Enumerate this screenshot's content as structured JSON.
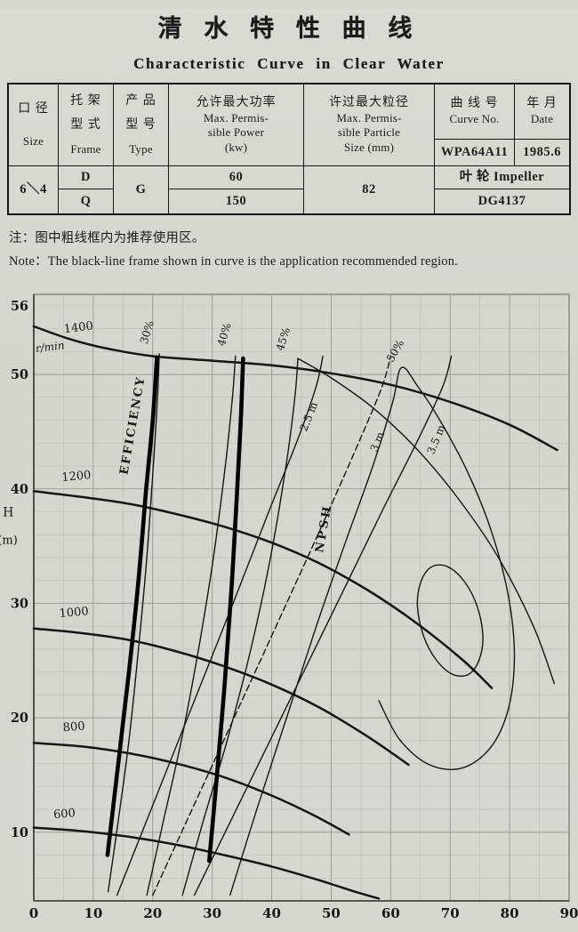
{
  "page": {
    "title_cn": "清  水  特  性  曲  线",
    "title_en": "Characteristic  Curve  in  Clear  Water",
    "note_cn": "注：图中粗线框内为推荐使用区。",
    "note_en": "Note：The black-line frame shown in curve is the application recommended region."
  },
  "table": {
    "headers": {
      "size_cn": "口  径",
      "size_en": "Size",
      "frame_cn1": "托  架",
      "frame_cn2": "型  式",
      "frame_en": "Frame",
      "type_cn1": "产  品",
      "type_cn2": "型  号",
      "type_en": "Type",
      "power_cn": "允许最大功率",
      "power_en1": "Max. Permis-",
      "power_en2": "sible Power",
      "power_en3": "(kw)",
      "particle_cn": "许过最大粒径",
      "particle_en1": "Max. Permis-",
      "particle_en2": "sible Particle",
      "particle_en3": "Size (mm)",
      "curve_cn": "曲 线 号",
      "curve_en": "Curve No.",
      "date_cn": "年  月",
      "date_en": "Date"
    },
    "values": {
      "size": "6＼4",
      "frame_row1": "D",
      "frame_row2": "Q",
      "type": "G",
      "power_row1": "60",
      "power_row2": "150",
      "particle": "82",
      "curve_no": "WPA64A11",
      "date": "1985.6",
      "impeller": "叶 轮  Impeller",
      "impeller_no": "DG4137"
    }
  },
  "chart_data": {
    "type": "line",
    "title": "Characteristic Curve in Clear Water",
    "xlabel": "",
    "ylabel": "H (m)",
    "xlim": [
      0,
      90
    ],
    "ylim": [
      4,
      57
    ],
    "x_ticks": [
      0,
      10,
      20,
      30,
      40,
      50,
      60,
      70,
      80,
      90
    ],
    "y_ticks": [
      10,
      20,
      30,
      40,
      50,
      56
    ],
    "grid": {
      "x_minor": 5,
      "x_major": 10,
      "y_minor": 2,
      "y_major": 10
    },
    "colors": {
      "curve": "#151515",
      "grid_minor": "#c0c0b8",
      "grid_major": "#9e9e96",
      "frame": "#000000",
      "border": "#77776f"
    },
    "series": [
      {
        "name": "hq-1400",
        "label": "1400 r/min head curve",
        "w": 2.5,
        "points": [
          [
            0,
            54.2
          ],
          [
            6,
            53.1
          ],
          [
            12,
            52.3
          ],
          [
            20,
            51.6
          ],
          [
            30,
            51.2
          ],
          [
            40,
            50.8
          ],
          [
            50,
            50.1
          ],
          [
            60,
            49.1
          ],
          [
            70,
            47.6
          ],
          [
            80,
            45.6
          ],
          [
            88,
            43.4
          ]
        ]
      },
      {
        "name": "hq-1200",
        "label": "1200 r/min head curve",
        "w": 2.5,
        "points": [
          [
            0,
            39.8
          ],
          [
            8,
            39.3
          ],
          [
            16,
            38.7
          ],
          [
            24,
            37.8
          ],
          [
            32,
            36.7
          ],
          [
            40,
            35.3
          ],
          [
            48,
            33.5
          ],
          [
            56,
            31.2
          ],
          [
            64,
            28.4
          ],
          [
            72,
            25.1
          ],
          [
            77,
            22.6
          ]
        ]
      },
      {
        "name": "hq-1000",
        "label": "1000 r/min head curve",
        "w": 2.5,
        "points": [
          [
            0,
            27.8
          ],
          [
            8,
            27.4
          ],
          [
            16,
            26.8
          ],
          [
            24,
            25.8
          ],
          [
            32,
            24.5
          ],
          [
            40,
            22.9
          ],
          [
            48,
            20.9
          ],
          [
            56,
            18.4
          ],
          [
            63,
            15.9
          ]
        ]
      },
      {
        "name": "hq-800",
        "label": "800 r/min head curve",
        "w": 2.5,
        "points": [
          [
            0,
            17.8
          ],
          [
            8,
            17.5
          ],
          [
            16,
            16.9
          ],
          [
            24,
            16.0
          ],
          [
            32,
            14.8
          ],
          [
            40,
            13.2
          ],
          [
            47,
            11.5
          ],
          [
            53,
            9.8
          ]
        ]
      },
      {
        "name": "hq-600",
        "label": "600 r/min head curve",
        "w": 2.5,
        "points": [
          [
            0,
            10.4
          ],
          [
            8,
            10.1
          ],
          [
            16,
            9.6
          ],
          [
            24,
            8.9
          ],
          [
            32,
            8.0
          ],
          [
            40,
            7.0
          ],
          [
            48,
            5.8
          ],
          [
            54,
            4.8
          ],
          [
            58,
            4.2
          ]
        ]
      },
      {
        "name": "eff-30",
        "label": "30% efficiency line",
        "w": 1.4,
        "points": [
          [
            12.5,
            4.8
          ],
          [
            14.2,
            11
          ],
          [
            16,
            18
          ],
          [
            17.6,
            26
          ],
          [
            19,
            34
          ],
          [
            20.1,
            42
          ],
          [
            20.8,
            48
          ],
          [
            21.1,
            51.8
          ]
        ]
      },
      {
        "name": "eff-40",
        "label": "40% efficiency line",
        "w": 1.4,
        "points": [
          [
            19,
            4.5
          ],
          [
            21.8,
            11
          ],
          [
            24.8,
            18
          ],
          [
            27.7,
            26
          ],
          [
            30.2,
            34
          ],
          [
            32.2,
            42
          ],
          [
            33.4,
            48
          ],
          [
            33.9,
            51.6
          ]
        ]
      },
      {
        "name": "eff-45",
        "label": "45% efficiency line",
        "w": 1.4,
        "points": [
          [
            25,
            4.5
          ],
          [
            28.5,
            11
          ],
          [
            32.5,
            18
          ],
          [
            36.5,
            26
          ],
          [
            39.8,
            34
          ],
          [
            42.4,
            42
          ],
          [
            43.9,
            48
          ],
          [
            44.4,
            51.4
          ]
        ]
      },
      {
        "name": "eff-45-right",
        "label": "45% efficiency right branch",
        "w": 1.4,
        "points": [
          [
            44.4,
            51.4
          ],
          [
            50,
            49.7
          ],
          [
            57,
            47.1
          ],
          [
            64,
            43.7
          ],
          [
            71,
            39.4
          ],
          [
            78,
            34.1
          ],
          [
            84,
            28.0
          ],
          [
            87.5,
            23.0
          ]
        ]
      },
      {
        "name": "eff-50",
        "label": "50% efficiency contour",
        "w": 1.4,
        "points": [
          [
            33,
            4.5
          ],
          [
            37.5,
            12
          ],
          [
            42.5,
            20
          ],
          [
            47.5,
            28
          ],
          [
            52.5,
            35.5
          ],
          [
            57,
            42
          ],
          [
            60.3,
            47.5
          ],
          [
            61.8,
            50.6
          ],
          [
            64.5,
            49.0
          ],
          [
            68.5,
            45.8
          ],
          [
            73,
            41.4
          ],
          [
            77,
            36.2
          ],
          [
            79.8,
            30.6
          ],
          [
            80.8,
            25.4
          ],
          [
            79.8,
            20.8
          ],
          [
            76.8,
            17.4
          ],
          [
            72,
            15.6
          ],
          [
            66.5,
            15.9
          ],
          [
            61.5,
            18.1
          ],
          [
            58,
            21.5
          ]
        ]
      },
      {
        "name": "eff-max-island",
        "label": "best efficiency island",
        "w": 1.4,
        "closed": true,
        "points": [
          [
            74.9,
            25.1
          ],
          [
            75.5,
            27.2
          ],
          [
            74.5,
            29.8
          ],
          [
            72.4,
            31.9
          ],
          [
            69.6,
            33.2
          ],
          [
            66.9,
            33.2
          ],
          [
            65.1,
            31.9
          ],
          [
            64.5,
            29.8
          ],
          [
            65.5,
            27.2
          ],
          [
            67.6,
            25.1
          ],
          [
            70.4,
            23.8
          ],
          [
            73.1,
            23.8
          ]
        ]
      },
      {
        "name": "npsh-2-5",
        "label": "NPSH 2.5 m line",
        "w": 1.4,
        "points": [
          [
            14,
            4.5
          ],
          [
            20.5,
            13
          ],
          [
            27,
            21.5
          ],
          [
            33.5,
            30
          ],
          [
            39.5,
            38
          ],
          [
            44.5,
            44.5
          ],
          [
            47.5,
            49
          ],
          [
            48.6,
            51.6
          ]
        ]
      },
      {
        "name": "npsh-3",
        "label": "NPSH 3 m line",
        "w": 1.4,
        "dash": "7 4",
        "points": [
          [
            20,
            4.5
          ],
          [
            27.5,
            13
          ],
          [
            35,
            21.5
          ],
          [
            42.5,
            30
          ],
          [
            49.5,
            38
          ],
          [
            55,
            44.5
          ],
          [
            58.6,
            49
          ],
          [
            60,
            51.6
          ]
        ]
      },
      {
        "name": "npsh-3-5",
        "label": "NPSH 3.5 m line",
        "w": 1.4,
        "points": [
          [
            27,
            4.5
          ],
          [
            35,
            13
          ],
          [
            43,
            21.5
          ],
          [
            51,
            30
          ],
          [
            58.5,
            38
          ],
          [
            64.8,
            44.5
          ],
          [
            68.8,
            49
          ],
          [
            70.2,
            51.6
          ]
        ]
      },
      {
        "name": "frame-left",
        "label": "recommended region left bound",
        "w": 4.6,
        "color": "#000000",
        "points": [
          [
            12.4,
            8
          ],
          [
            14.2,
            16
          ],
          [
            16,
            24
          ],
          [
            17.6,
            32
          ],
          [
            18.9,
            40
          ],
          [
            20,
            46
          ],
          [
            20.7,
            51.5
          ]
        ]
      },
      {
        "name": "frame-right",
        "label": "recommended region right bound",
        "w": 4.6,
        "color": "#000000",
        "points": [
          [
            29.5,
            7.5
          ],
          [
            30.8,
            15
          ],
          [
            32.1,
            23
          ],
          [
            33.2,
            31
          ],
          [
            34.1,
            39
          ],
          [
            34.8,
            46
          ],
          [
            35.2,
            51.4
          ]
        ]
      }
    ],
    "labels": [
      {
        "name": "speed-1400",
        "text": "1400",
        "x": 7.6,
        "y": 53.8,
        "rot": -7,
        "size": 13
      },
      {
        "name": "rpm-unit",
        "text": "r/min",
        "x": 2.8,
        "y": 52.1,
        "rot": -7,
        "size": 12,
        "italic": true
      },
      {
        "name": "speed-1200",
        "text": "1200",
        "x": 7.2,
        "y": 40.8,
        "rot": -5,
        "size": 13
      },
      {
        "name": "speed-1000",
        "text": "1000",
        "x": 6.8,
        "y": 28.9,
        "rot": -5,
        "size": 13
      },
      {
        "name": "speed-800",
        "text": "800",
        "x": 6.8,
        "y": 18.9,
        "rot": -5,
        "size": 13
      },
      {
        "name": "speed-600",
        "text": "600",
        "x": 5.2,
        "y": 11.3,
        "rot": -5,
        "size": 13
      },
      {
        "name": "eff-30-label",
        "text": "30%",
        "x": 19.6,
        "y": 53.6,
        "rot": -73,
        "size": 12
      },
      {
        "name": "eff-40-label",
        "text": "40%",
        "x": 32.6,
        "y": 53.4,
        "rot": -73,
        "size": 12
      },
      {
        "name": "eff-45-label",
        "text": "45%",
        "x": 42.5,
        "y": 53.0,
        "rot": -73,
        "size": 12
      },
      {
        "name": "eff-50-label",
        "text": "50%",
        "x": 61.3,
        "y": 51.9,
        "rot": -60,
        "size": 12
      },
      {
        "name": "efficiency-label",
        "text": "EFFICIENCY",
        "x": 17.2,
        "y": 45.5,
        "rot": -80,
        "size": 13,
        "bold": true,
        "spacing": 2
      },
      {
        "name": "npsh-2-5-label",
        "text": "2.5 m",
        "x": 46.8,
        "y": 46.2,
        "rot": -68,
        "size": 12
      },
      {
        "name": "npsh-3-label",
        "text": "3 m",
        "x": 58.3,
        "y": 44.0,
        "rot": -68,
        "size": 12
      },
      {
        "name": "npsh-3-5-label",
        "text": "3.5 m",
        "x": 68.2,
        "y": 44.2,
        "rot": -68,
        "size": 12
      },
      {
        "name": "npsh-label",
        "text": "NPSH",
        "x": 49.3,
        "y": 36.5,
        "rot": -80,
        "size": 13,
        "bold": true,
        "spacing": 3
      },
      {
        "name": "y-axis-title",
        "text": "H",
        "x": -4.3,
        "y": 37.6,
        "rot": 0,
        "size": 14
      },
      {
        "name": "y-axis-unit",
        "text": "(m)",
        "x": -4.4,
        "y": 35.2,
        "rot": 0,
        "size": 13
      }
    ]
  }
}
